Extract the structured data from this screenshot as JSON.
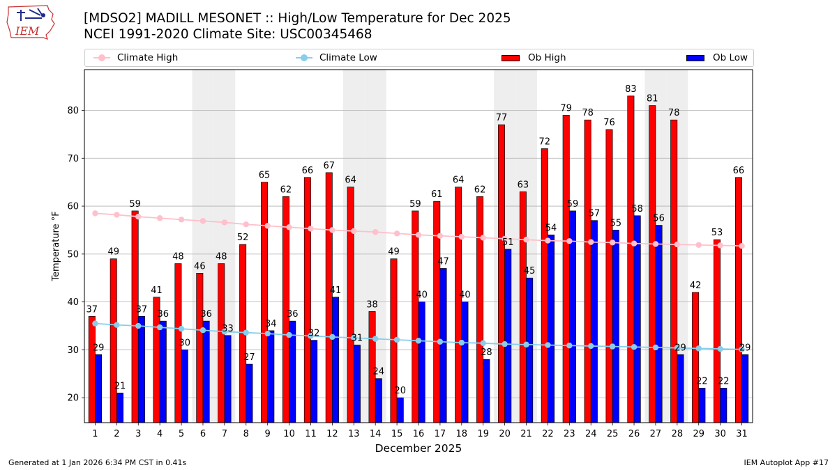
{
  "header": {
    "title_line1": "[MDSO2] MADILL MESONET :: High/Low Temperature for Dec 2025",
    "title_line2": "NCEI 1991-2020 Climate Site: USC00345468",
    "logo_text": "IEM"
  },
  "legend": {
    "climate_high": "Climate High",
    "climate_low": "Climate Low",
    "ob_high": "Ob High",
    "ob_low": "Ob Low"
  },
  "colors": {
    "ob_high": "#ff0000",
    "ob_low": "#0000ff",
    "climate_high": "#ffc0cb",
    "climate_low": "#87ceeb",
    "weekend_band": "#eeeeee",
    "grid": "#b0b0b0"
  },
  "footer": {
    "generated": "Generated at 1 Jan 2026 6:34 PM CST in 0.41s",
    "app": "IEM Autoplot App #17"
  },
  "chart_data": {
    "type": "bar",
    "xlabel": "December 2025",
    "ylabel": "Temperature °F",
    "ylim": [
      14.8,
      88.5
    ],
    "yticks": [
      20,
      30,
      40,
      50,
      60,
      70,
      80
    ],
    "grid": true,
    "legend_position": "top",
    "categories": [
      "1",
      "2",
      "3",
      "4",
      "5",
      "6",
      "7",
      "8",
      "9",
      "10",
      "11",
      "12",
      "13",
      "14",
      "15",
      "16",
      "17",
      "18",
      "19",
      "20",
      "21",
      "22",
      "23",
      "24",
      "25",
      "26",
      "27",
      "28",
      "29",
      "30",
      "31"
    ],
    "weekend_days": [
      6,
      7,
      13,
      14,
      20,
      21,
      27,
      28
    ],
    "series": [
      {
        "name": "Ob High",
        "kind": "bar",
        "values": [
          37,
          49,
          59,
          41,
          48,
          46,
          48,
          52,
          65,
          62,
          66,
          67,
          64,
          38,
          49,
          59,
          61,
          64,
          62,
          77,
          63,
          72,
          79,
          78,
          76,
          83,
          81,
          78,
          42,
          53,
          66
        ]
      },
      {
        "name": "Ob Low",
        "kind": "bar",
        "values": [
          29,
          21,
          37,
          36,
          30,
          36,
          33,
          27,
          34,
          36,
          32,
          41,
          31,
          24,
          20,
          40,
          47,
          40,
          28,
          51,
          45,
          54,
          59,
          57,
          55,
          58,
          56,
          29,
          22,
          22,
          29
        ]
      },
      {
        "name": "Climate High",
        "kind": "line",
        "values": [
          58.5,
          58.2,
          57.8,
          57.5,
          57.2,
          56.9,
          56.6,
          56.2,
          55.9,
          55.6,
          55.3,
          55.0,
          54.8,
          54.6,
          54.3,
          54.0,
          53.8,
          53.6,
          53.4,
          53.2,
          53.0,
          52.8,
          52.7,
          52.5,
          52.4,
          52.2,
          52.1,
          52.0,
          51.9,
          51.8,
          51.7
        ]
      },
      {
        "name": "Climate Low",
        "kind": "line",
        "values": [
          35.5,
          35.2,
          35.0,
          34.7,
          34.4,
          34.1,
          33.8,
          33.6,
          33.4,
          33.1,
          32.9,
          32.7,
          32.5,
          32.3,
          32.1,
          31.9,
          31.7,
          31.5,
          31.4,
          31.2,
          31.1,
          31.0,
          30.9,
          30.8,
          30.7,
          30.6,
          30.5,
          30.4,
          30.3,
          30.2,
          30.1
        ]
      }
    ]
  }
}
